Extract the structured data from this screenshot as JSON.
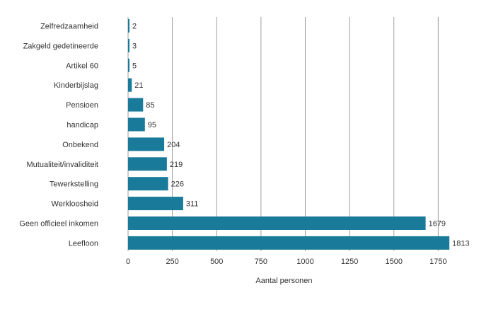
{
  "chart_data": {
    "type": "bar",
    "orientation": "horizontal",
    "categories": [
      "Zelfredzaamheid",
      "Zakgeld gedetineerde",
      "Artikel 60",
      "Kinderbijslag",
      "Pensioen",
      "handicap",
      "Onbekend",
      "Mutualiteit/invaliditeit",
      "Tewerkstelling",
      "Werkloosheid",
      "Geen officieel inkomen",
      "Leefloon"
    ],
    "values": [
      2,
      3,
      5,
      21,
      85,
      95,
      204,
      219,
      226,
      311,
      1679,
      1813
    ],
    "xlabel": "Aantal personen",
    "xlim": [
      0,
      1800
    ],
    "xticks": [
      0,
      250,
      500,
      750,
      1000,
      1250,
      1500,
      1750
    ],
    "grid": "vertical",
    "legend": "none",
    "bar_color": "#1a7a99",
    "grid_color": "#9e9e9e"
  }
}
